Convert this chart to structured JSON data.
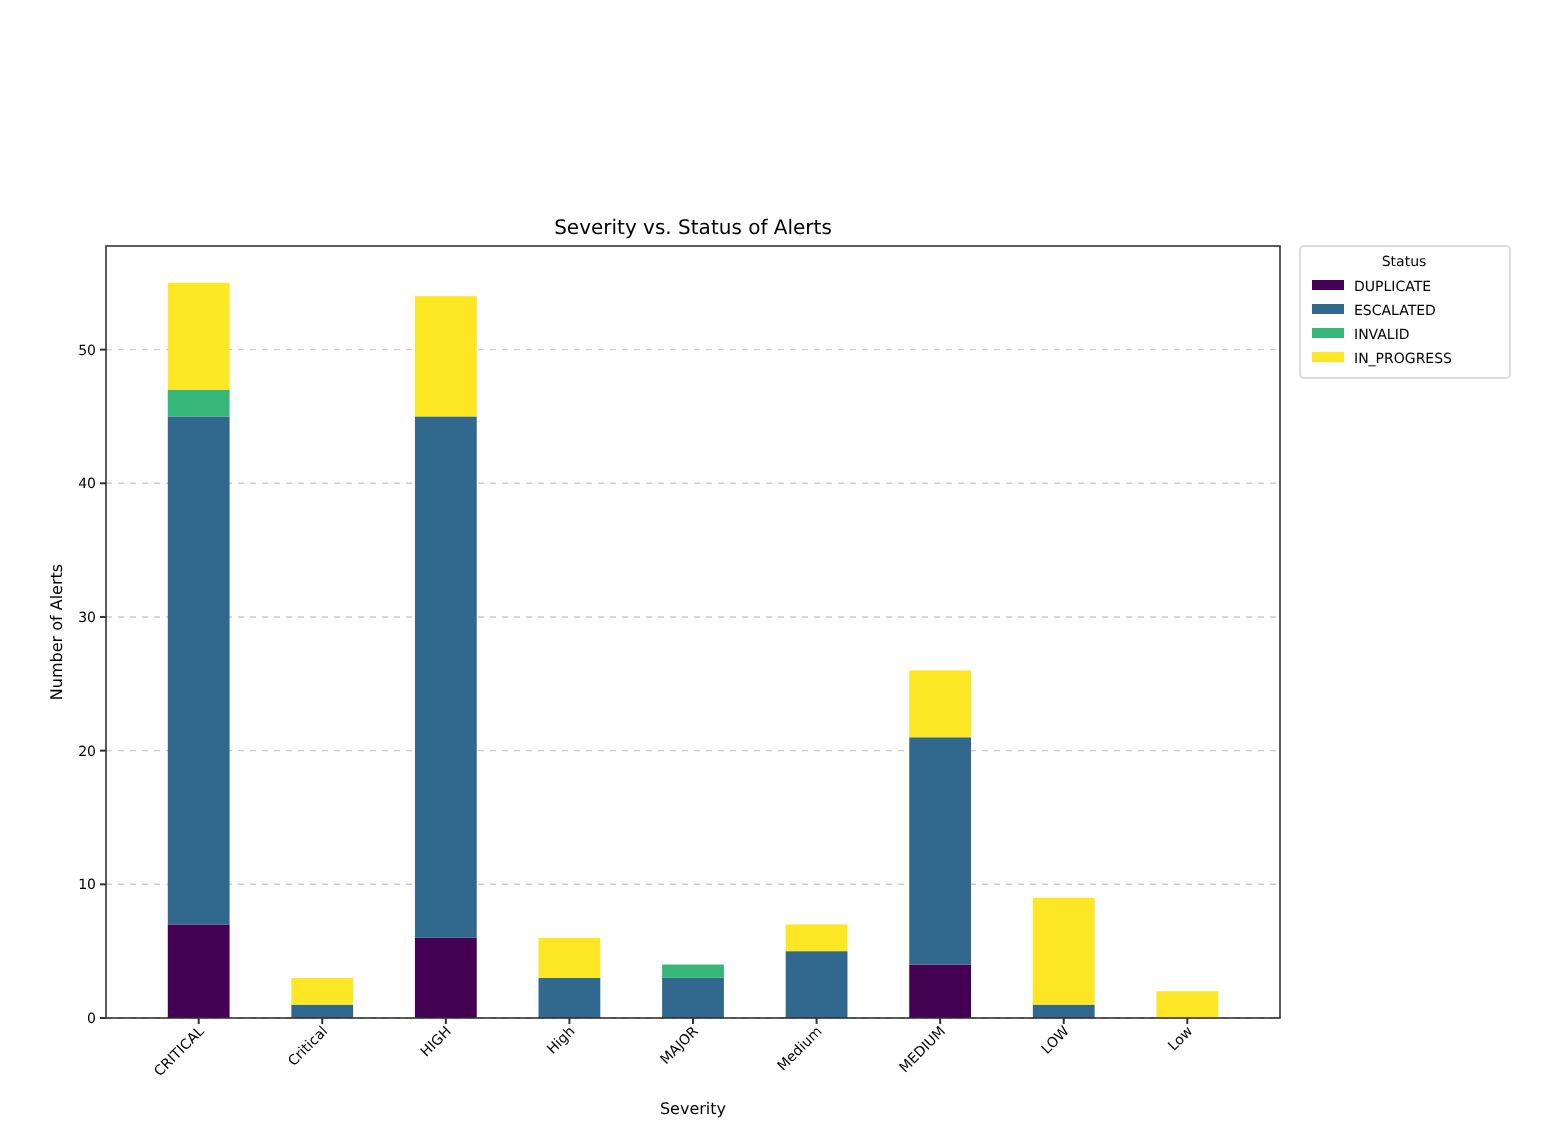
{
  "chart_data": {
    "type": "bar",
    "title": "Severity vs. Status of Alerts",
    "xlabel": "Severity",
    "ylabel": "Number of Alerts",
    "legend_title": "Status",
    "categories": [
      "CRITICAL",
      "Critical",
      "HIGH",
      "High",
      "MAJOR",
      "Medium",
      "MEDIUM",
      "LOW",
      "Low"
    ],
    "series": [
      {
        "name": "DUPLICATE",
        "color": "#440154",
        "values": [
          7,
          0,
          6,
          0,
          0,
          0,
          4,
          0,
          0
        ]
      },
      {
        "name": "ESCALATED",
        "color": "#31688e",
        "values": [
          38,
          1,
          39,
          3,
          3,
          5,
          17,
          1,
          0
        ]
      },
      {
        "name": "INVALID",
        "color": "#35b779",
        "values": [
          2,
          0,
          0,
          0,
          1,
          0,
          0,
          0,
          0
        ]
      },
      {
        "name": "IN_PROGRESS",
        "color": "#fde725",
        "values": [
          8,
          2,
          9,
          3,
          0,
          2,
          5,
          8,
          2
        ]
      }
    ],
    "stacked": true,
    "ylim": [
      0,
      57.75
    ],
    "yticks": [
      0,
      10,
      20,
      30,
      40,
      50
    ],
    "grid": "y",
    "legend": "top right"
  }
}
